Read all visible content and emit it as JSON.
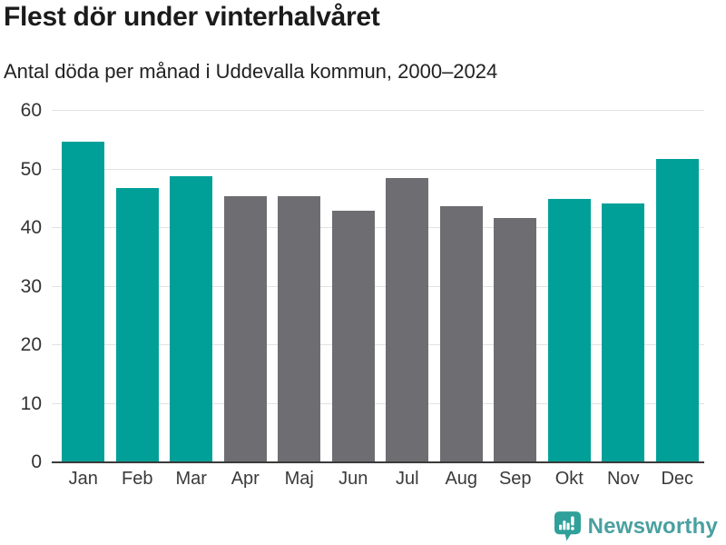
{
  "header": {
    "title": "Flest dör under vinterhalvåret",
    "subtitle": "Antal döda per månad i Uddevalla kommun, 2000–2024"
  },
  "chart_data": {
    "type": "bar",
    "title": "Flest dör under vinterhalvåret",
    "subtitle": "Antal döda per månad i Uddevalla kommun, 2000–2024",
    "categories": [
      "Jan",
      "Feb",
      "Mar",
      "Apr",
      "Maj",
      "Jun",
      "Jul",
      "Aug",
      "Sep",
      "Okt",
      "Nov",
      "Dec"
    ],
    "values": [
      54.6,
      46.7,
      48.7,
      45.3,
      45.3,
      42.8,
      48.3,
      43.5,
      41.5,
      44.8,
      44.1,
      51.7
    ],
    "bar_color_keys": [
      "teal",
      "teal",
      "teal",
      "gray",
      "gray",
      "gray",
      "gray",
      "gray",
      "gray",
      "teal",
      "teal",
      "teal"
    ],
    "colors": {
      "teal": "#00a099",
      "gray": "#6e6e72"
    },
    "xlabel": "",
    "ylabel": "",
    "ylim": [
      0,
      60
    ],
    "yticks": [
      0,
      10,
      20,
      30,
      40,
      50,
      60
    ],
    "grid": true,
    "legend": "none"
  },
  "footer": {
    "brand": "Newsworthy",
    "brand_color": "#4aa0a0",
    "logo_color": "#30a09a",
    "logo_icon": "speech-bubble-bar-chart-exclamation"
  }
}
